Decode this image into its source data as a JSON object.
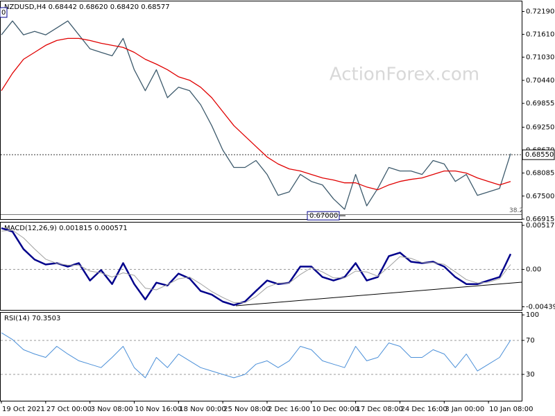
{
  "chart_data": [
    {
      "type": "line",
      "title": "NZDUSD,H4  0.68442 0.68620 0.68420 0.68577",
      "corner_label": "0",
      "watermark": "ActionForex.com",
      "x": [
        0,
        1,
        2,
        3,
        4,
        5,
        6,
        7,
        8,
        9,
        10,
        11,
        12,
        13,
        14,
        15,
        16,
        17,
        18,
        19,
        20,
        21,
        22,
        23,
        24,
        25,
        26,
        27,
        28,
        29,
        30,
        31,
        32,
        33,
        34,
        35,
        36,
        37,
        38,
        39,
        40,
        41,
        42,
        43,
        44,
        45,
        46
      ],
      "xlim": [
        0,
        47
      ],
      "ylim": [
        0.66915,
        0.72446
      ],
      "yticks": [
        {
          "value": 0.7219,
          "label": "0.72190"
        },
        {
          "value": 0.7161,
          "label": "0.71610"
        },
        {
          "value": 0.7103,
          "label": "0.71030"
        },
        {
          "value": 0.7044,
          "label": "0.70440"
        },
        {
          "value": 0.69855,
          "label": "0.69855"
        },
        {
          "value": 0.6925,
          "label": "0.69250"
        },
        {
          "value": 0.6867,
          "label": "0.68670"
        },
        {
          "value": 0.68085,
          "label": "0.68085"
        },
        {
          "value": 0.675,
          "label": "0.67500"
        },
        {
          "value": 0.66915,
          "label": "0.66915"
        }
      ],
      "series": [
        {
          "color": "#3d5a6c",
          "values": [
            0.71595,
            0.7195,
            0.71595,
            0.71684,
            0.71595,
            0.71772,
            0.7195,
            0.71595,
            0.71241,
            0.71152,
            0.71063,
            0.71506,
            0.70709,
            0.70177,
            0.70709,
            0.7,
            0.70265,
            0.70177,
            0.69822,
            0.6929,
            0.6867,
            0.68227,
            0.68227,
            0.68404,
            0.6805,
            0.67518,
            0.67606,
            0.6805,
            0.67872,
            0.67784,
            0.67429,
            0.67163,
            0.6805,
            0.67252,
            0.67695,
            0.68227,
            0.68138,
            0.68138,
            0.6805,
            0.68404,
            0.68315,
            0.67872,
            0.6805,
            0.67518,
            0.67606,
            0.67695,
            0.68577
          ]
        },
        {
          "color": "#e00000",
          "values": [
            0.70177,
            0.7062,
            0.70975,
            0.71152,
            0.71329,
            0.71453,
            0.71506,
            0.71506,
            0.71453,
            0.71382,
            0.71329,
            0.71276,
            0.71152,
            0.70975,
            0.70851,
            0.70709,
            0.70531,
            0.70443,
            0.70265,
            0.7,
            0.69645,
            0.6929,
            0.69024,
            0.68759,
            0.68493,
            0.68315,
            0.68191,
            0.68138,
            0.6805,
            0.67961,
            0.67908,
            0.67837,
            0.67837,
            0.6773,
            0.6766,
            0.67784,
            0.67872,
            0.67925,
            0.67961,
            0.6805,
            0.68138,
            0.68138,
            0.68085,
            0.67961,
            0.67872,
            0.67784,
            0.67872
          ]
        }
      ],
      "annotations": [
        {
          "style": "price-tag",
          "value": 0.6855,
          "label": "0.68550"
        },
        {
          "style": "box",
          "value": 0.67,
          "label": "0.67000"
        },
        {
          "style": "fib",
          "value": 0.6703,
          "label": "38.2"
        }
      ]
    },
    {
      "type": "line",
      "title": "MACD(12,26,9) 0.001815 0.000571",
      "x": [
        0,
        1,
        2,
        3,
        4,
        5,
        6,
        7,
        8,
        9,
        10,
        11,
        12,
        13,
        14,
        15,
        16,
        17,
        18,
        19,
        20,
        21,
        22,
        23,
        24,
        25,
        26,
        27,
        28,
        29,
        30,
        31,
        32,
        33,
        34,
        35,
        36,
        37,
        38,
        39,
        40,
        41,
        42,
        43,
        44,
        45,
        46
      ],
      "xlim": [
        0,
        47
      ],
      "ylim": [
        -0.00476,
        0.0055
      ],
      "yticks": [
        0.005172,
        {
          "value": 0,
          "label": "0.00"
        },
        -0.004393
      ],
      "levels": [
        0
      ],
      "series": [
        {
          "color": "#00008b",
          "width": 2.5,
          "values": [
            0.00484,
            0.00443,
            0.00238,
            0.00115,
            0.00057,
            0.00074,
            0.00033,
            0.00074,
            -0.00131,
            -8e-05,
            -0.00172,
            0.00074,
            -0.00172,
            -0.00353,
            -0.00156,
            -0.00189,
            -0.00049,
            -0.00107,
            -0.00254,
            -0.00296,
            -0.00378,
            -0.00419,
            -0.00378,
            -0.00254,
            -0.00131,
            -0.00172,
            -0.00156,
            0.00033,
            0.00033,
            -0.0009,
            -0.00131,
            -0.0009,
            0.00074,
            -0.00131,
            -0.0009,
            0.00156,
            0.00197,
            0.0009,
            0.00074,
            0.0009,
            0.00033,
            -0.0009,
            -0.00172,
            -0.00172,
            -0.00131,
            -0.0009,
            0.001815
          ]
        },
        {
          "color": "#a0a0a0",
          "width": 1,
          "values": [
            0.0045,
            0.0046,
            0.0037,
            0.0024,
            0.0012,
            0.0007,
            0.0005,
            0.0005,
            -0.0002,
            -0.0004,
            -0.0009,
            -0.0004,
            -0.0007,
            -0.0022,
            -0.0024,
            -0.0018,
            -0.0011,
            -0.0009,
            -0.0017,
            -0.0026,
            -0.0033,
            -0.0039,
            -0.0039,
            -0.0032,
            -0.0021,
            -0.0016,
            -0.0016,
            -0.0006,
            0.0002,
            -0.0003,
            -0.001,
            -0.001,
            -0.0002,
            -0.0003,
            -0.0008,
            0.0003,
            0.0015,
            0.0013,
            0.0008,
            0.0008,
            0.0006,
            -0.0003,
            -0.0012,
            -0.0016,
            -0.0015,
            -0.0011,
            0.000571
          ]
        }
      ]
    },
    {
      "type": "line",
      "title": "RSI(14) 70.3503",
      "x": [
        0,
        1,
        2,
        3,
        4,
        5,
        6,
        7,
        8,
        9,
        10,
        11,
        12,
        13,
        14,
        15,
        16,
        17,
        18,
        19,
        20,
        21,
        22,
        23,
        24,
        25,
        26,
        27,
        28,
        29,
        30,
        31,
        32,
        33,
        34,
        35,
        36,
        37,
        38,
        39,
        40,
        41,
        42,
        43,
        44,
        45,
        46
      ],
      "xlim": [
        0,
        47
      ],
      "ylim": [
        -1,
        102.6
      ],
      "yticks": [
        100,
        70,
        30
      ],
      "levels": [
        70,
        30
      ],
      "xticks": [
        {
          "value": 0,
          "label": "19 Oct 2021"
        },
        {
          "value": 4,
          "label": "27 Oct 00:00"
        },
        {
          "value": 8,
          "label": "3 Nov 08:00"
        },
        {
          "value": 12,
          "label": "10 Nov 16:00"
        },
        {
          "value": 16,
          "label": "18 Nov 00:00"
        },
        {
          "value": 20,
          "label": "25 Nov 08:00"
        },
        {
          "value": 24,
          "label": "2 Dec 16:00"
        },
        {
          "value": 28,
          "label": "10 Dec 00:00"
        },
        {
          "value": 32,
          "label": "17 Dec 08:00"
        },
        {
          "value": 36,
          "label": "24 Dec 16:00"
        },
        {
          "value": 40,
          "label": "3 Jan 00:00"
        },
        {
          "value": 44,
          "label": "10 Jan 08:00"
        }
      ],
      "series": [
        {
          "color": "#4a8fd8",
          "width": 1,
          "values": [
            79,
            71,
            59,
            54,
            50,
            63,
            54,
            46,
            42,
            38,
            50,
            63,
            38,
            26,
            50,
            38,
            54,
            46,
            38,
            34,
            30,
            26,
            30,
            42,
            46,
            38,
            46,
            63,
            59,
            46,
            42,
            38,
            63,
            46,
            50,
            67,
            63,
            50,
            50,
            59,
            54,
            38,
            54,
            34,
            42,
            50,
            70.35
          ]
        }
      ]
    }
  ]
}
